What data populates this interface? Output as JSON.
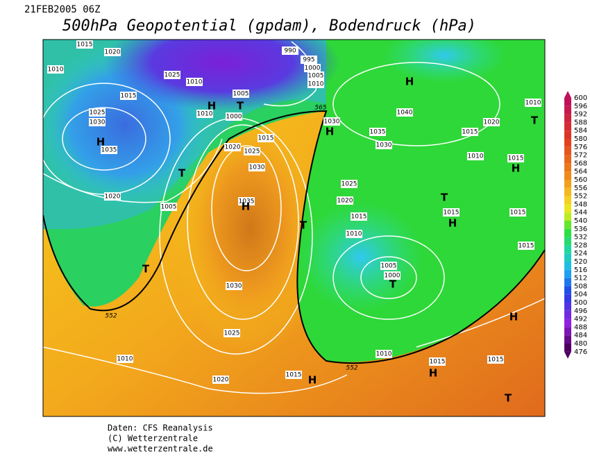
{
  "header": {
    "date": "21FEB2005 06Z",
    "title": "500hPa Geopotential (gpdam), Bodendruck (hPa)"
  },
  "map": {
    "isobar_labels": [
      1015,
      1020,
      1010,
      1025,
      1010,
      1015,
      1025,
      1030,
      1035,
      1020,
      1005,
      990,
      995,
      1000,
      1005,
      1010,
      1005,
      1000,
      1010,
      1030,
      1020,
      1025,
      1015,
      1030,
      1035,
      1040,
      1035,
      1030,
      1015,
      1020,
      1010,
      1010,
      1015,
      1025,
      1020,
      1015,
      1010,
      1015,
      1015,
      1015,
      1005,
      1000,
      1030,
      1025,
      1010,
      1020,
      1015,
      1010,
      1015,
      1015
    ],
    "geopotential_labels": [
      565,
      552,
      552
    ],
    "pressure_centers": [
      "H",
      "H",
      "T",
      "H",
      "H",
      "T",
      "H",
      "T",
      "H",
      "T",
      "H",
      "T",
      "T",
      "T",
      "H",
      "H",
      "H",
      "T"
    ]
  },
  "legend": {
    "values": [
      600,
      596,
      592,
      588,
      584,
      580,
      576,
      572,
      568,
      564,
      560,
      556,
      552,
      548,
      544,
      540,
      536,
      532,
      528,
      524,
      520,
      516,
      512,
      508,
      504,
      500,
      496,
      492,
      488,
      484,
      480,
      476
    ]
  },
  "footer": {
    "source": "Daten: CFS Reanalysis",
    "copyright": "(C) Wetterzentrale",
    "url": "www.wetterzentrale.de"
  }
}
